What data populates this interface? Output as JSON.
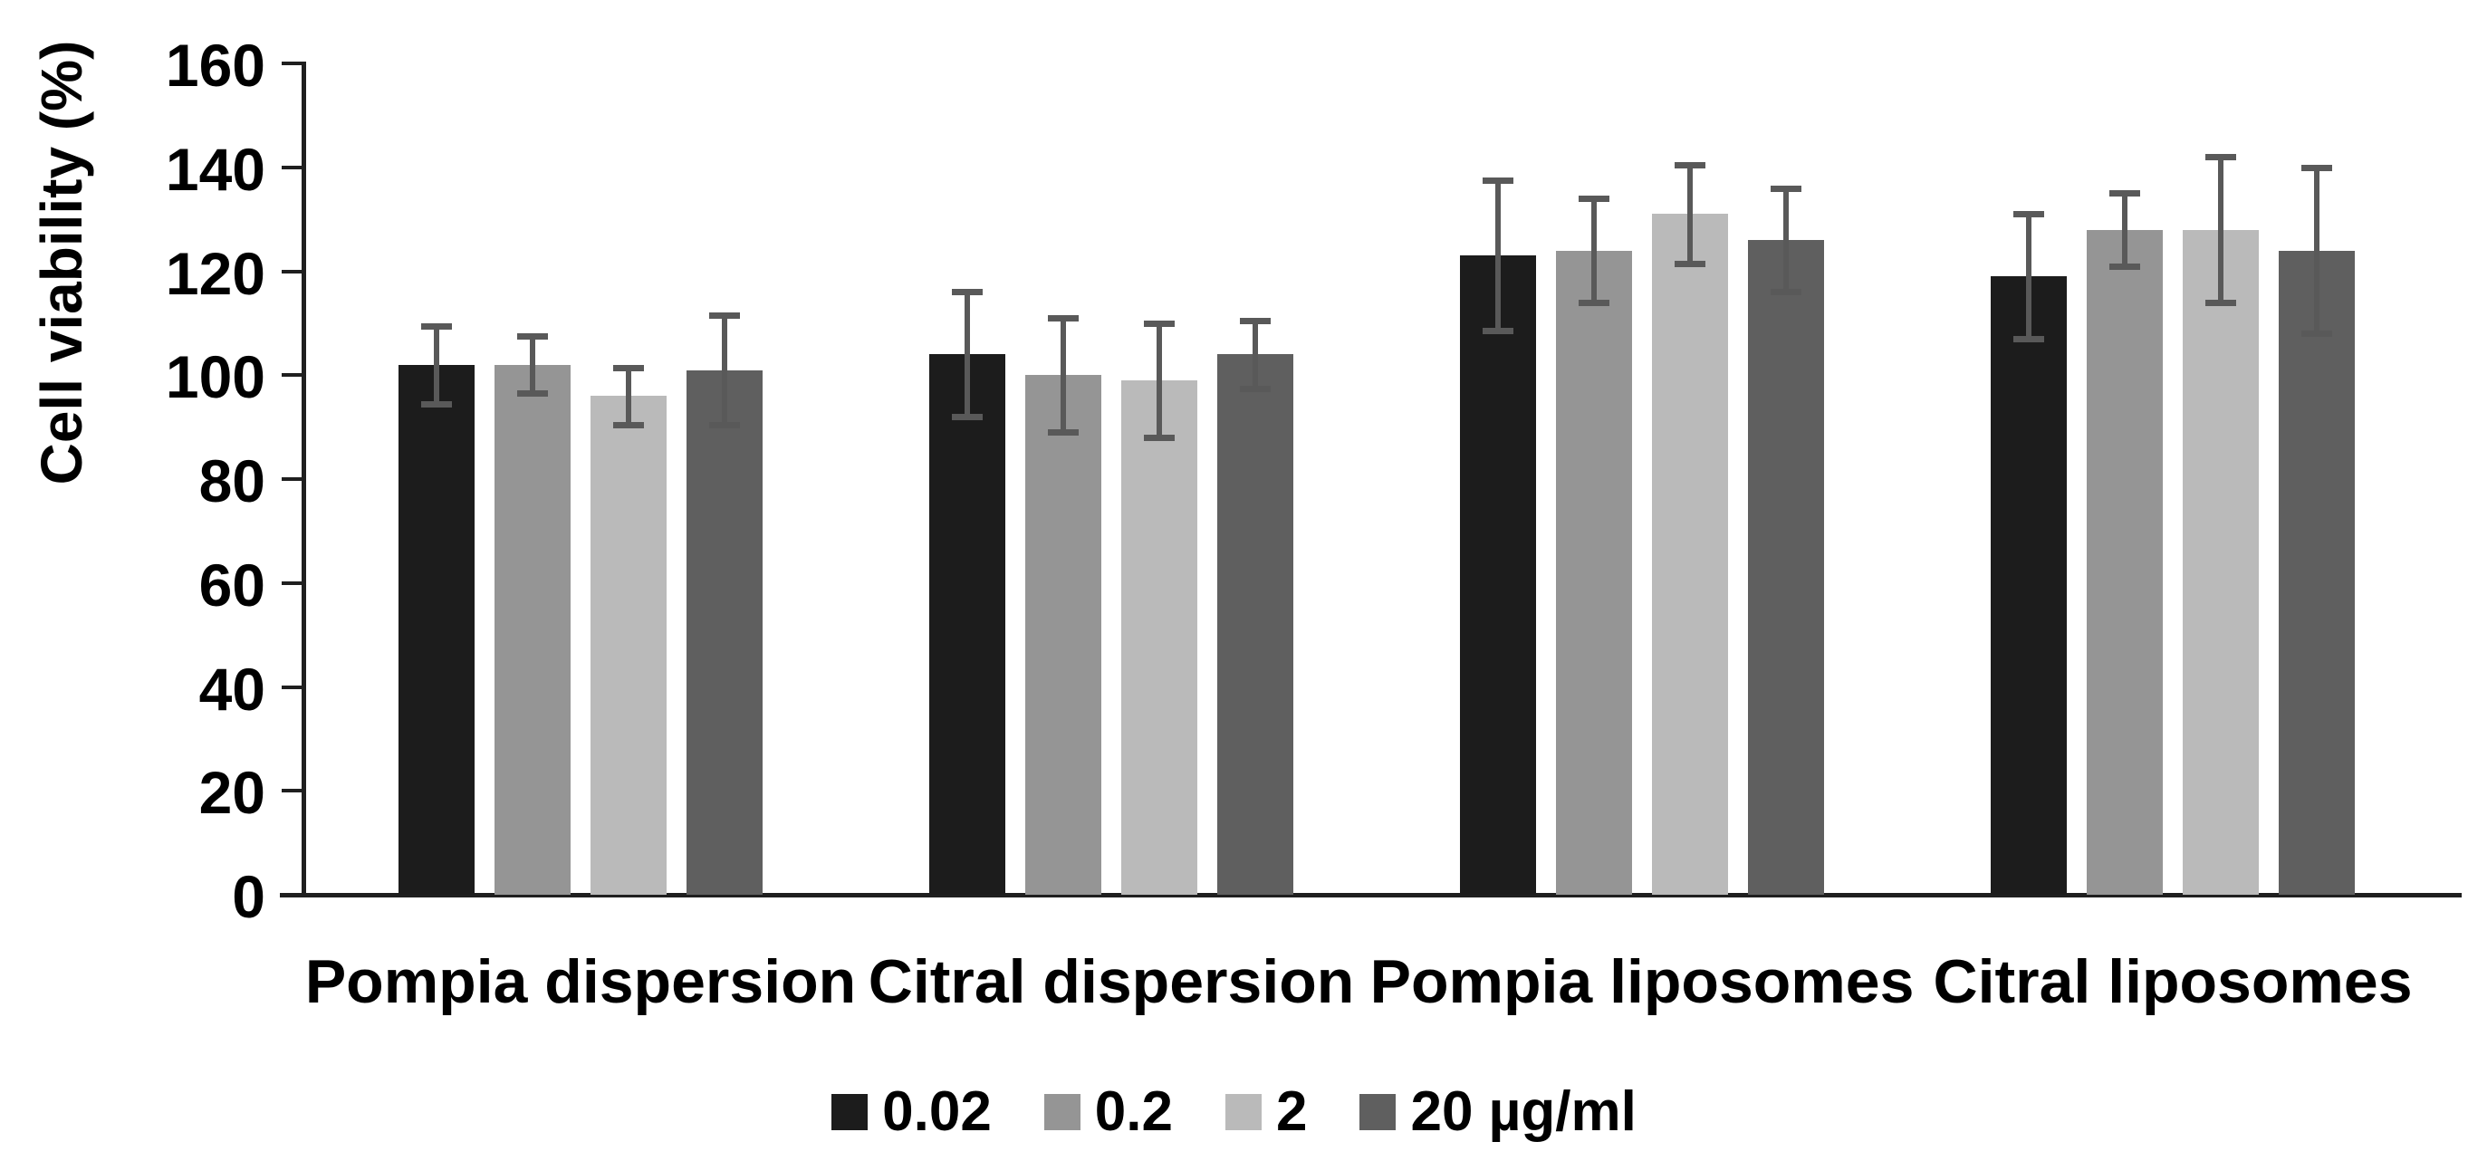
{
  "figure": {
    "background": "#ffffff",
    "text_color": "#000000",
    "axis_color": "#1f1f1f",
    "error_bar_color": "#595959"
  },
  "chart_data": {
    "type": "bar",
    "title": "",
    "xlabel": "",
    "ylabel": "Cell viability (%)",
    "ylim": [
      0,
      160
    ],
    "yticks": [
      0,
      20,
      40,
      60,
      80,
      100,
      120,
      140,
      160
    ],
    "grid": false,
    "legend_position": "bottom",
    "categories": [
      "Pompia dispersion",
      "Citral dispersion",
      "Pompia liposomes",
      "Citral liposomes"
    ],
    "series": [
      {
        "name": "0.02",
        "color": "#1c1c1c",
        "values": [
          102,
          104,
          123,
          119
        ],
        "errors": [
          7.5,
          12,
          14.5,
          12
        ]
      },
      {
        "name": "0.2",
        "color": "#959595",
        "values": [
          102,
          100,
          124,
          128
        ],
        "errors": [
          5.5,
          11,
          10,
          7
        ]
      },
      {
        "name": "2",
        "color": "#bababa",
        "values": [
          96,
          99,
          131,
          128
        ],
        "errors": [
          5.5,
          11,
          9.5,
          14
        ]
      },
      {
        "name": "20 µg/ml",
        "color": "#5f5f5f",
        "values": [
          101,
          104,
          126,
          124
        ],
        "errors": [
          10.5,
          6.5,
          10,
          16
        ]
      }
    ]
  }
}
